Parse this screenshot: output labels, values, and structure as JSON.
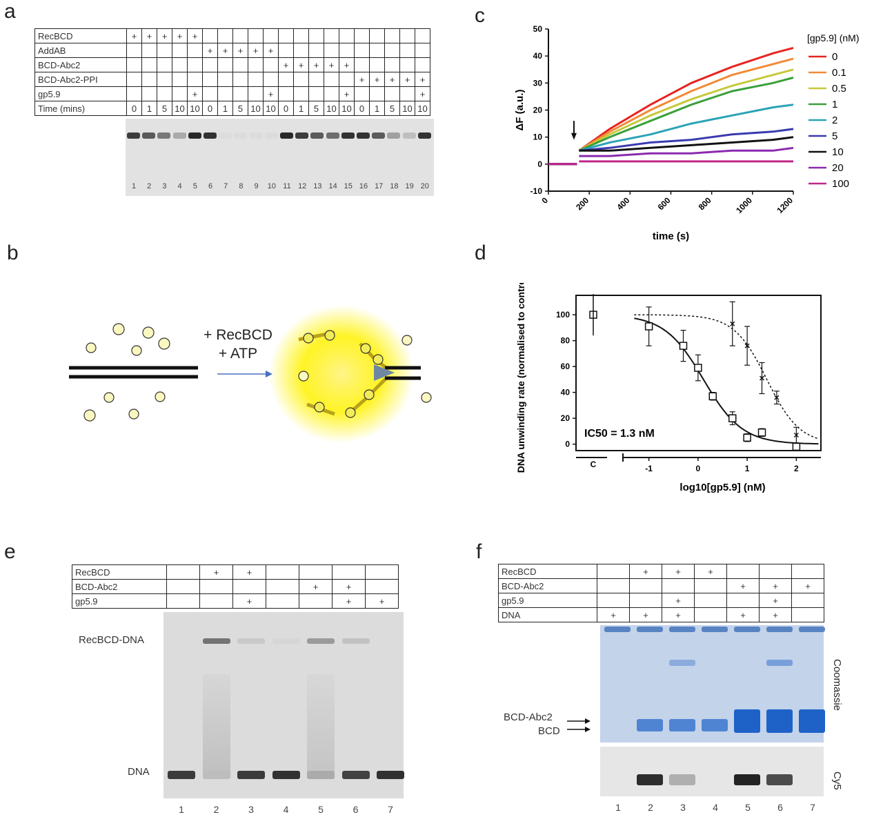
{
  "panels": {
    "a": {
      "letter": "a",
      "rows": [
        {
          "label": "RecBCD",
          "cells": [
            "+",
            "+",
            "+",
            "+",
            "+",
            "",
            "",
            "",
            "",
            "",
            "",
            "",
            "",
            "",
            "",
            "",
            "",
            "",
            "",
            ""
          ]
        },
        {
          "label": "AddAB",
          "cells": [
            "",
            "",
            "",
            "",
            "",
            "+",
            "+",
            "+",
            "+",
            "+",
            "",
            "",
            "",
            "",
            "",
            "",
            "",
            "",
            "",
            ""
          ]
        },
        {
          "label": "BCD-Abc2",
          "cells": [
            "",
            "",
            "",
            "",
            "",
            "",
            "",
            "",
            "",
            "",
            "+",
            "+",
            "+",
            "+",
            "+",
            "",
            "",
            "",
            "",
            ""
          ]
        },
        {
          "label": "BCD-Abc2-PPI",
          "cells": [
            "",
            "",
            "",
            "",
            "",
            "",
            "",
            "",
            "",
            "",
            "",
            "",
            "",
            "",
            "",
            "+",
            "+",
            "+",
            "+",
            "+"
          ]
        },
        {
          "label": "gp5.9",
          "cells": [
            "",
            "",
            "",
            "",
            "+",
            "",
            "",
            "",
            "",
            "+",
            "",
            "",
            "",
            "",
            "+",
            "",
            "",
            "",
            "",
            "+"
          ]
        },
        {
          "label": "Time (mins)",
          "cells": [
            "0",
            "1",
            "5",
            "10",
            "10",
            "0",
            "1",
            "5",
            "10",
            "10",
            "0",
            "1",
            "5",
            "10",
            "10",
            "0",
            "1",
            "5",
            "10",
            "10"
          ]
        }
      ],
      "lanes": [
        "1",
        "2",
        "3",
        "4",
        "5",
        "6",
        "7",
        "8",
        "9",
        "10",
        "11",
        "12",
        "13",
        "14",
        "15",
        "16",
        "17",
        "18",
        "19",
        "20"
      ],
      "band_intensity": [
        0.85,
        0.7,
        0.55,
        0.3,
        0.95,
        0.9,
        0.05,
        0.05,
        0.05,
        0.05,
        0.95,
        0.85,
        0.7,
        0.6,
        0.9,
        0.9,
        0.7,
        0.35,
        0.2,
        0.9
      ]
    },
    "b": {
      "letter": "b",
      "label_line1": "+ RecBCD",
      "label_line2": "+ ATP"
    },
    "c": {
      "letter": "c",
      "chart_data": {
        "type": "line",
        "title": "",
        "xlabel": "time (s)",
        "ylabel": "ΔF (a.u.)",
        "xlim": [
          0,
          1200
        ],
        "ylim": [
          -10,
          50
        ],
        "xticks": [
          0,
          200,
          400,
          600,
          800,
          1000,
          1200
        ],
        "yticks": [
          -10,
          0,
          10,
          20,
          30,
          40,
          50
        ],
        "legend_title": "[gp5.9] (nM)",
        "series": [
          {
            "name": "0",
            "color": "#e8231f",
            "x": [
              0,
              140,
              150,
              300,
              500,
              700,
              900,
              1100,
              1200
            ],
            "y": [
              0,
              0,
              5,
              13,
              22,
              30,
              36,
              41,
              43
            ]
          },
          {
            "name": "0.1",
            "color": "#f28a35",
            "x": [
              0,
              140,
              150,
              300,
              500,
              700,
              900,
              1100,
              1200
            ],
            "y": [
              0,
              0,
              5,
              12,
              20,
              27,
              33,
              37,
              39
            ]
          },
          {
            "name": "0.5",
            "color": "#c6c93a",
            "x": [
              0,
              140,
              150,
              300,
              500,
              700,
              900,
              1100,
              1200
            ],
            "y": [
              0,
              0,
              5,
              11,
              18,
              24,
              29,
              33,
              35
            ]
          },
          {
            "name": "1",
            "color": "#3aa03a",
            "x": [
              0,
              140,
              150,
              300,
              500,
              700,
              900,
              1100,
              1200
            ],
            "y": [
              0,
              0,
              5,
              10,
              16,
              22,
              27,
              30,
              32
            ]
          },
          {
            "name": "2",
            "color": "#2aa3b5",
            "x": [
              0,
              140,
              150,
              300,
              500,
              700,
              900,
              1100,
              1200
            ],
            "y": [
              0,
              0,
              5,
              8,
              11,
              15,
              18,
              21,
              22
            ]
          },
          {
            "name": "5",
            "color": "#3a3ab0",
            "x": [
              0,
              140,
              150,
              300,
              500,
              700,
              900,
              1100,
              1200
            ],
            "y": [
              0,
              0,
              5,
              6,
              8,
              9,
              11,
              12,
              13
            ]
          },
          {
            "name": "10",
            "color": "#111111",
            "x": [
              0,
              140,
              150,
              300,
              500,
              700,
              900,
              1100,
              1200
            ],
            "y": [
              0,
              0,
              5,
              5,
              6,
              7,
              8,
              9,
              10
            ]
          },
          {
            "name": "20",
            "color": "#8a2ab0",
            "x": [
              0,
              140,
              150,
              300,
              500,
              700,
              900,
              1100,
              1200
            ],
            "y": [
              0,
              0,
              3,
              3,
              4,
              4,
              5,
              5,
              6
            ]
          },
          {
            "name": "100",
            "color": "#c0268a",
            "x": [
              0,
              140,
              150,
              300,
              500,
              700,
              900,
              1100,
              1200
            ],
            "y": [
              0,
              0,
              1,
              1,
              1,
              1,
              1,
              1,
              1
            ]
          }
        ],
        "annotations": [
          "arrow at t≈120 s"
        ]
      }
    },
    "d": {
      "letter": "d",
      "chart_data": {
        "type": "scatter",
        "xlabel": "log10[gp5.9] (nM)",
        "ylabel": "DNA unwinding rate (normalised to control)",
        "xlim": [
          -1.5,
          2.5
        ],
        "ylim": [
          -5,
          115
        ],
        "xticks": [
          "C",
          "-1",
          "0",
          "1",
          "2"
        ],
        "yticks": [
          0,
          20,
          40,
          60,
          80,
          100
        ],
        "annotation": "IC50 = 1.3 nM",
        "series": [
          {
            "name": "squares",
            "marker": "square",
            "x": [
              -1,
              -0.3,
              0,
              0.3,
              0.7,
              1,
              1.3,
              2
            ],
            "y": [
              91,
              76,
              59,
              37,
              20,
              5,
              9,
              -2
            ],
            "err": [
              15,
              12,
              10,
              3,
              5,
              3,
              3,
              3
            ]
          },
          {
            "name": "crosses",
            "marker": "x",
            "x": [
              0.7,
              1,
              1.3,
              1.6,
              2
            ],
            "y": [
              93,
              76,
              51,
              36,
              7
            ],
            "err": [
              17,
              15,
              12,
              5,
              6
            ]
          }
        ],
        "control": {
          "label": "C",
          "y": 100,
          "err": 16
        }
      }
    },
    "e": {
      "letter": "e",
      "rows": [
        {
          "label": "RecBCD",
          "cells": [
            "",
            "+",
            "+",
            "",
            "",
            "",
            ""
          ]
        },
        {
          "label": "BCD-Abc2",
          "cells": [
            "",
            "",
            "",
            "",
            "+",
            "+",
            ""
          ]
        },
        {
          "label": "gp5.9",
          "cells": [
            "",
            "",
            "+",
            "",
            "",
            "+",
            "+"
          ]
        }
      ],
      "lanes": [
        "1",
        "2",
        "3",
        "4",
        "5",
        "6",
        "7"
      ],
      "band_labels": {
        "upper": "RecBCD-DNA",
        "lower": "DNA"
      }
    },
    "f": {
      "letter": "f",
      "rows": [
        {
          "label": "RecBCD",
          "cells": [
            "",
            "+",
            "+",
            "+",
            "",
            "",
            ""
          ]
        },
        {
          "label": "BCD-Abc2",
          "cells": [
            "",
            "",
            "",
            "",
            "+",
            "+",
            "+"
          ]
        },
        {
          "label": "gp5.9",
          "cells": [
            "",
            "",
            "+",
            "",
            "",
            "+",
            ""
          ]
        },
        {
          "label": "DNA",
          "cells": [
            "+",
            "+",
            "+",
            "",
            "+",
            "+",
            ""
          ]
        }
      ],
      "lanes": [
        "1",
        "2",
        "3",
        "4",
        "5",
        "6",
        "7"
      ],
      "side_labels": {
        "top": "Coomassie",
        "bottom": "Cy5"
      },
      "arrow_labels": {
        "a": "BCD-Abc2",
        "b": "BCD"
      }
    }
  }
}
